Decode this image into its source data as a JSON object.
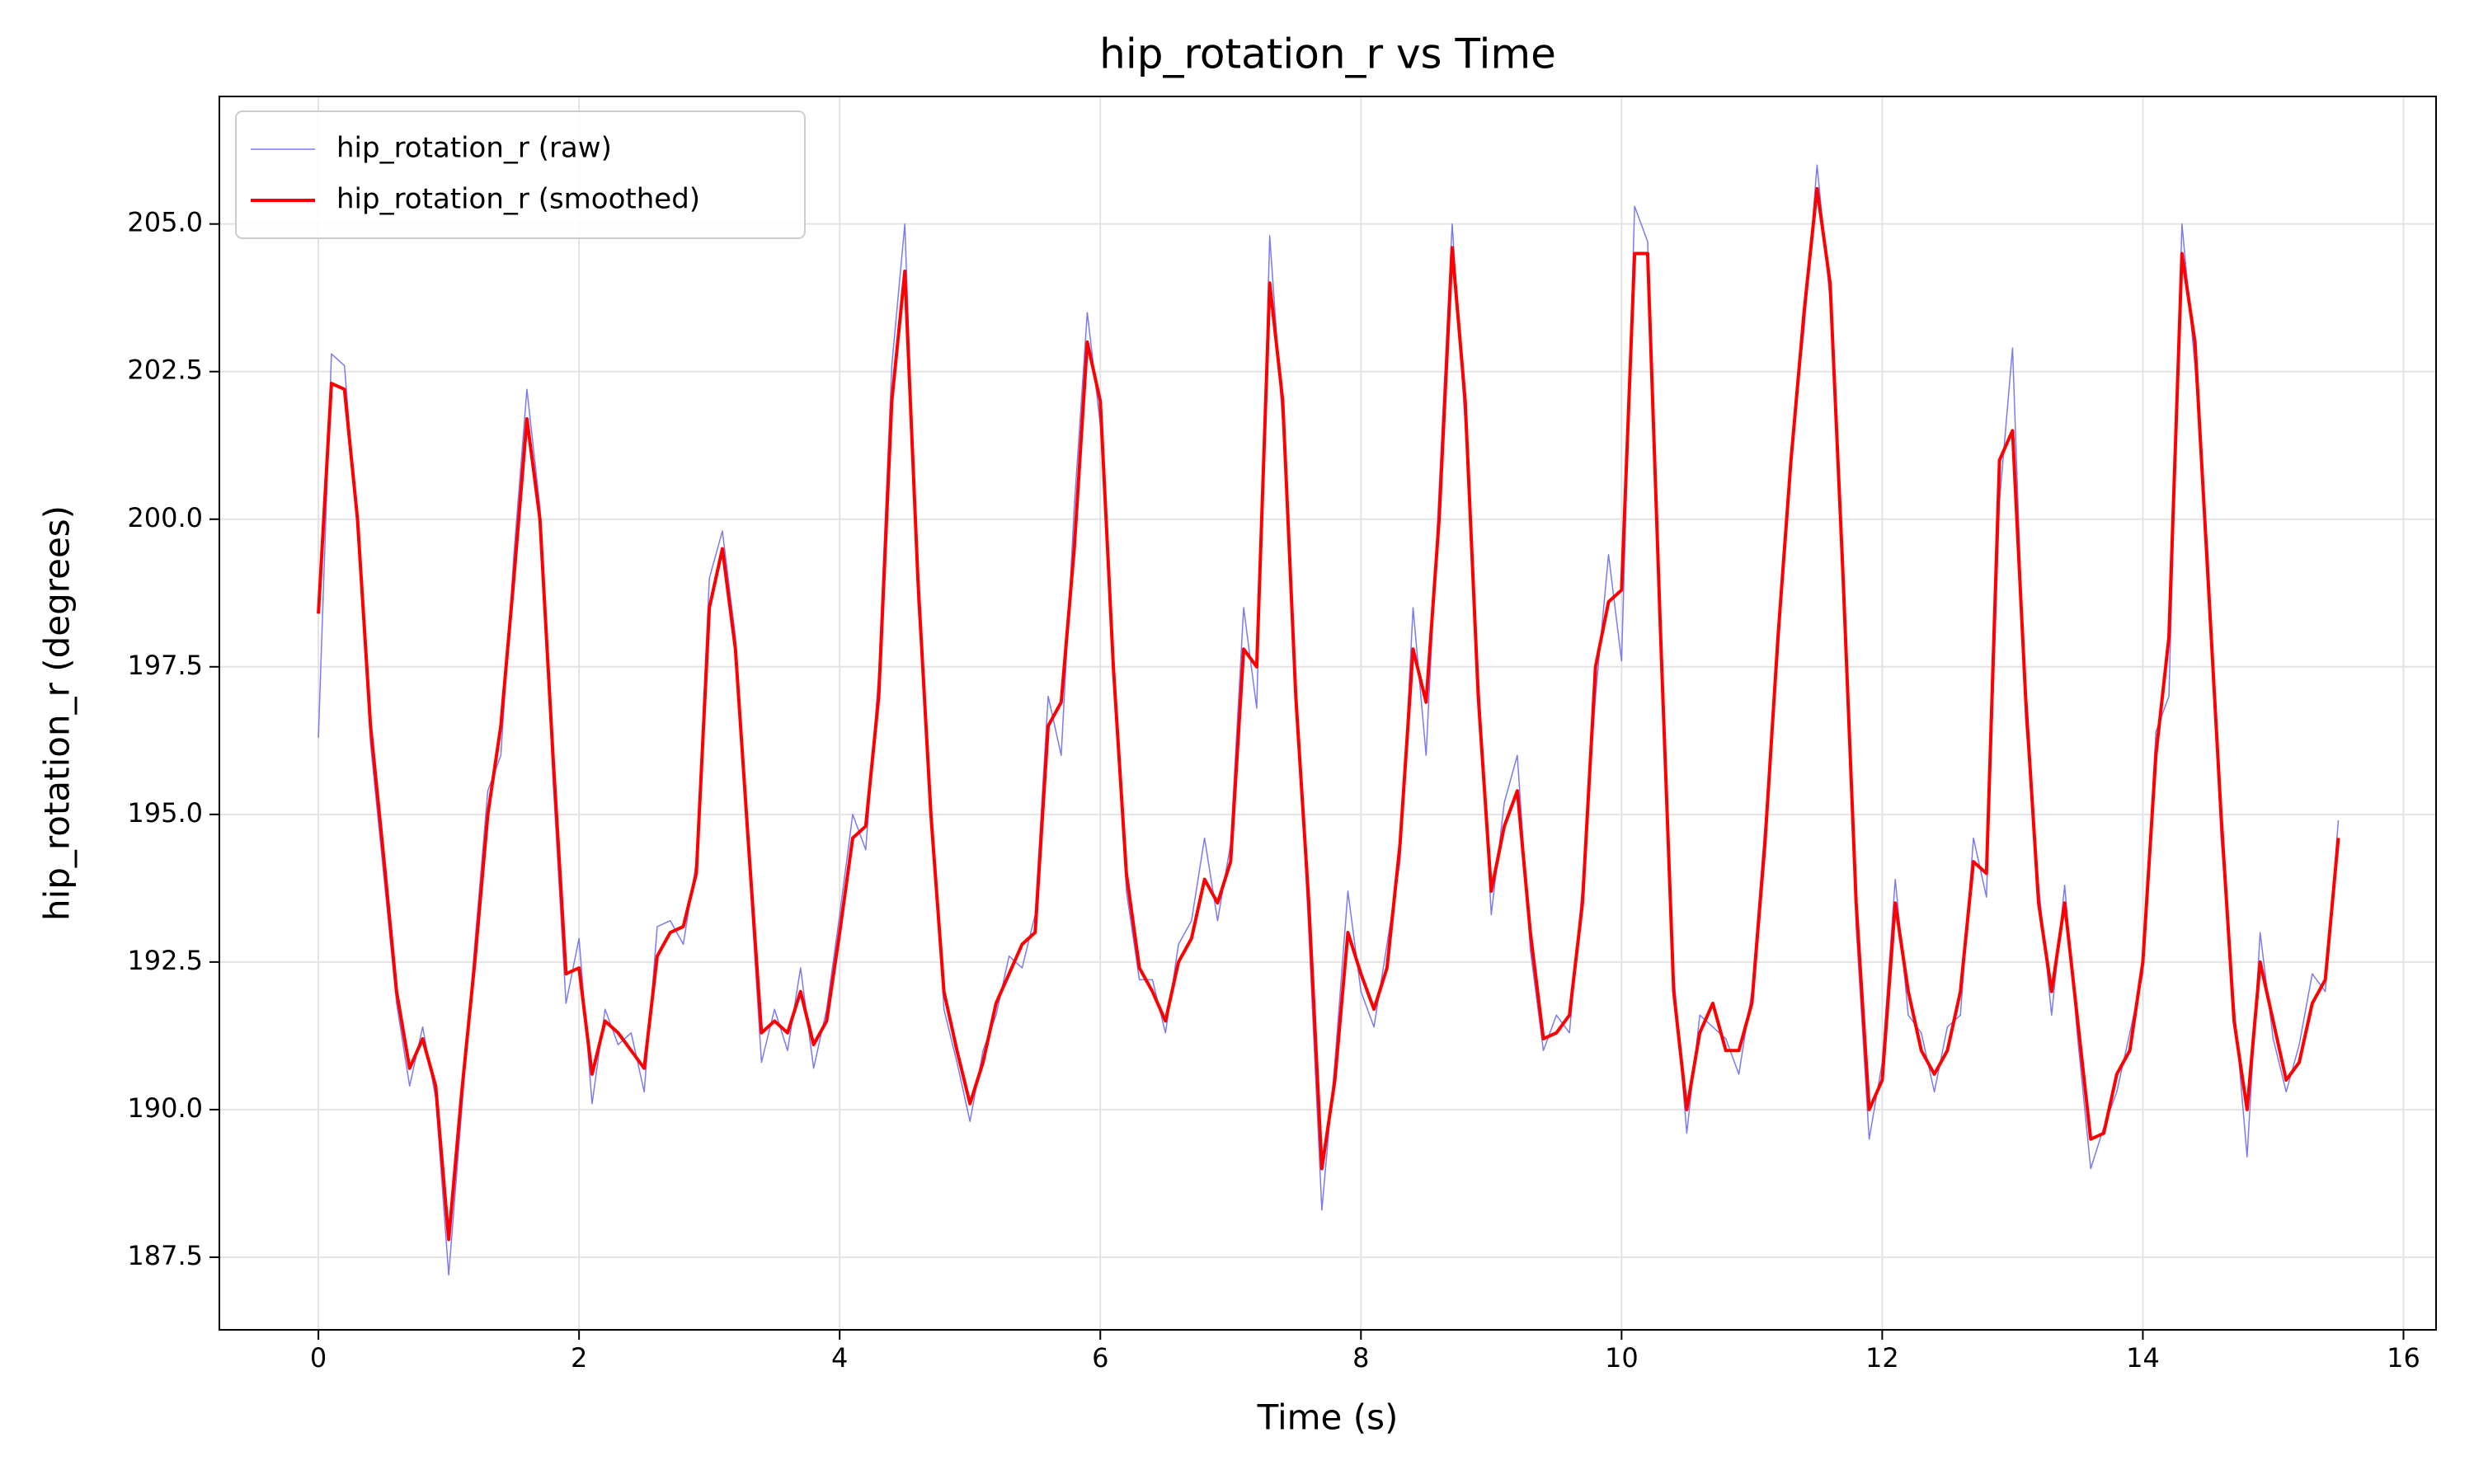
{
  "chart_data": {
    "type": "line",
    "title": "hip_rotation_r vs Time",
    "x_label": "Time (s)",
    "y_label": "hip_rotation_r (degrees)",
    "xlim": [
      -0.76,
      16.25
    ],
    "ylim": [
      186.27,
      207.16
    ],
    "xticks": [
      0,
      2,
      4,
      6,
      8,
      10,
      12,
      14,
      16
    ],
    "yticks": [
      {
        "value": 187.5,
        "label": "187.5"
      },
      {
        "value": 190,
        "label": "190.0"
      },
      {
        "value": 192.5,
        "label": "192.5"
      },
      {
        "value": 195,
        "label": "195.0"
      },
      {
        "value": 197.5,
        "label": "197.5"
      },
      {
        "value": 200,
        "label": "200.0"
      },
      {
        "value": 202.5,
        "label": "202.5"
      },
      {
        "value": 205,
        "label": "205.0"
      }
    ],
    "grid": true,
    "legend": "upper-left",
    "x": [
      0,
      0.1,
      0.2,
      0.3,
      0.4,
      0.5,
      0.6,
      0.7,
      0.8,
      0.9,
      1,
      1.1,
      1.2,
      1.3,
      1.4,
      1.5,
      1.6,
      1.7,
      1.8,
      1.9,
      2,
      2.1,
      2.2,
      2.3,
      2.4,
      2.5,
      2.6,
      2.7,
      2.8,
      2.9,
      3,
      3.1,
      3.2,
      3.3,
      3.4,
      3.5,
      3.6,
      3.7,
      3.8,
      3.9,
      4,
      4.1,
      4.2,
      4.3,
      4.4,
      4.5,
      4.6,
      4.7,
      4.8,
      4.9,
      5,
      5.1,
      5.2,
      5.3,
      5.4,
      5.5,
      5.6,
      5.7,
      5.8,
      5.9,
      6,
      6.1,
      6.2,
      6.3,
      6.4,
      6.5,
      6.6,
      6.7,
      6.8,
      6.9,
      7,
      7.1,
      7.2,
      7.3,
      7.4,
      7.5,
      7.6,
      7.7,
      7.8,
      7.9,
      8,
      8.1,
      8.2,
      8.3,
      8.4,
      8.5,
      8.6,
      8.7,
      8.8,
      8.9,
      9,
      9.1,
      9.2,
      9.3,
      9.4,
      9.5,
      9.6,
      9.7,
      9.8,
      9.9,
      10,
      10.1,
      10.2,
      10.3,
      10.4,
      10.5,
      10.6,
      10.7,
      10.8,
      10.9,
      11,
      11.1,
      11.2,
      11.3,
      11.4,
      11.5,
      11.6,
      11.7,
      11.8,
      11.9,
      12,
      12.1,
      12.2,
      12.3,
      12.4,
      12.5,
      12.6,
      12.7,
      12.8,
      12.9,
      13,
      13.1,
      13.2,
      13.3,
      13.4,
      13.5,
      13.6,
      13.7,
      13.8,
      13.9,
      14,
      14.1,
      14.2,
      14.3,
      14.4,
      14.5,
      14.6,
      14.7,
      14.8,
      14.9,
      15,
      15.1,
      15.2,
      15.3,
      15.4,
      15.5
    ],
    "series": [
      {
        "name": "hip_rotation_r (raw)",
        "color": "#7b7bf0",
        "width": 1.5,
        "values": [
          196.3,
          202.8,
          202.6,
          199.8,
          196.2,
          194.0,
          191.8,
          190.4,
          191.4,
          190.2,
          187.2,
          190.0,
          192.8,
          195.4,
          196.0,
          199.4,
          202.2,
          200.2,
          195.6,
          191.8,
          192.9,
          190.1,
          191.7,
          191.1,
          191.3,
          190.3,
          193.1,
          193.2,
          192.8,
          194.2,
          199.0,
          199.8,
          198.0,
          194.3,
          190.8,
          191.7,
          191.0,
          192.4,
          190.7,
          191.7,
          193.3,
          195.0,
          194.4,
          197.4,
          202.6,
          205.0,
          198.6,
          195.3,
          191.7,
          190.8,
          189.8,
          191.0,
          191.6,
          192.6,
          192.4,
          193.3,
          197.0,
          196.0,
          200.2,
          203.5,
          201.6,
          197.8,
          193.7,
          192.2,
          192.2,
          191.3,
          192.8,
          193.2,
          194.6,
          193.2,
          194.5,
          198.5,
          196.8,
          204.8,
          201.6,
          197.3,
          193.0,
          188.3,
          190.8,
          193.7,
          192.0,
          191.4,
          192.8,
          194.2,
          198.5,
          196.0,
          200.5,
          205.0,
          201.6,
          197.4,
          193.3,
          195.2,
          196.0,
          192.7,
          191.0,
          191.6,
          191.3,
          193.8,
          197.0,
          199.4,
          197.6,
          205.3,
          204.7,
          197.6,
          192.3,
          189.6,
          191.6,
          191.4,
          191.2,
          190.6,
          192.0,
          194.8,
          197.7,
          201.2,
          203.2,
          206.0,
          203.7,
          199.4,
          193.1,
          189.5,
          190.8,
          193.9,
          191.6,
          191.3,
          190.3,
          191.4,
          191.6,
          194.6,
          193.6,
          200.3,
          202.9,
          196.6,
          193.8,
          191.6,
          193.8,
          191.2,
          189.0,
          189.7,
          190.3,
          191.3,
          192.3,
          196.4,
          197.0,
          205.0,
          202.6,
          199.4,
          194.6,
          191.8,
          189.2,
          193.0,
          191.2,
          190.3,
          191.1,
          192.3,
          192.0,
          194.9
        ]
      },
      {
        "name": "hip_rotation_r (smoothed)",
        "color": "#ff0000",
        "width": 4,
        "values": [
          198.4,
          202.3,
          202.2,
          200.0,
          196.5,
          194.3,
          192.0,
          190.7,
          191.2,
          190.4,
          187.8,
          190.3,
          192.5,
          195.0,
          196.5,
          199.0,
          201.7,
          200.0,
          196.0,
          192.3,
          192.4,
          190.6,
          191.5,
          191.3,
          191.0,
          190.7,
          192.6,
          193.0,
          193.1,
          194.0,
          198.5,
          199.5,
          197.8,
          194.5,
          191.3,
          191.5,
          191.3,
          192.0,
          191.1,
          191.5,
          193.0,
          194.6,
          194.8,
          197.0,
          202.0,
          204.2,
          199.0,
          195.0,
          192.0,
          191.0,
          190.1,
          190.8,
          191.8,
          192.3,
          192.8,
          193.0,
          196.5,
          196.9,
          199.5,
          203.0,
          202.0,
          197.5,
          194.0,
          192.4,
          192.0,
          191.5,
          192.5,
          192.9,
          193.9,
          193.5,
          194.2,
          197.8,
          197.5,
          204.0,
          202.0,
          197.0,
          193.5,
          189.0,
          190.5,
          193.0,
          192.3,
          191.7,
          192.4,
          194.5,
          197.8,
          196.9,
          200.0,
          204.6,
          202.0,
          197.0,
          193.7,
          194.8,
          195.4,
          193.0,
          191.2,
          191.3,
          191.6,
          193.5,
          197.5,
          198.6,
          198.8,
          204.5,
          204.5,
          198.0,
          192.0,
          190.0,
          191.3,
          191.8,
          191.0,
          191.0,
          191.8,
          194.5,
          198.0,
          201.0,
          203.5,
          205.6,
          204.0,
          199.0,
          193.5,
          190.0,
          190.5,
          193.5,
          192.0,
          191.0,
          190.6,
          191.0,
          192.0,
          194.2,
          194.0,
          201.0,
          201.5,
          197.0,
          193.5,
          192.0,
          193.5,
          191.5,
          189.5,
          189.6,
          190.6,
          191.0,
          192.5,
          196.0,
          198.0,
          204.5,
          203.0,
          199.0,
          195.0,
          191.5,
          190.0,
          192.5,
          191.5,
          190.5,
          190.8,
          191.8,
          192.2,
          194.6
        ]
      }
    ]
  }
}
